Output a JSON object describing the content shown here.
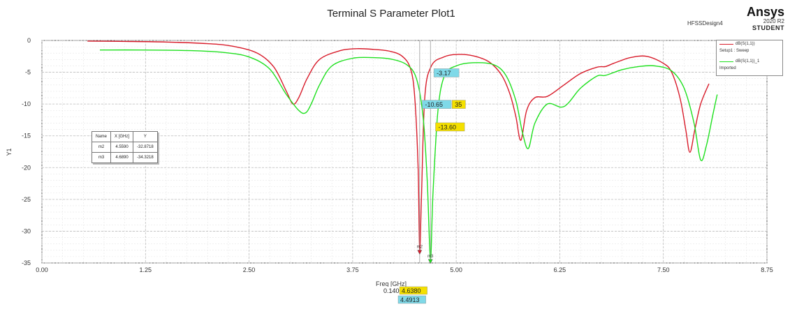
{
  "header": {
    "brand": "Ansys",
    "version": "2020 R2",
    "edition": "STUDENT",
    "design": "HFSSDesign4"
  },
  "legend": [
    {
      "name": "dB(S(1,1))",
      "sub": "Setup1 : Sweep",
      "color": "#d81b2a"
    },
    {
      "name": "dB(S(1,1))_1",
      "sub": "Imported",
      "color": "#1ee01e"
    }
  ],
  "marker_table": {
    "headers": [
      "Name",
      "X [GHz]",
      "Y"
    ],
    "rows": [
      [
        "m2",
        "4.5590",
        "-32.8718"
      ],
      [
        "m3",
        "4.6890",
        "-34.3218"
      ]
    ]
  },
  "chart_data": {
    "type": "line",
    "title": "Terminal S Parameter Plot1",
    "xlabel": "Freq [GHz]",
    "ylabel": "Y1",
    "xlim": [
      0,
      8.75
    ],
    "ylim": [
      -35,
      0
    ],
    "xticks": [
      "0.00",
      "1.25",
      "2.50",
      "3.75",
      "5.00",
      "6.25",
      "7.50",
      "8.75"
    ],
    "yticks": [
      "0",
      "-5",
      "-10",
      "-15",
      "-20",
      "-25",
      "-30",
      "-35"
    ],
    "grid": true,
    "legend_position": "top-right",
    "series": [
      {
        "name": "dB(S(1,1))",
        "color": "#d81b2a",
        "x": [
          0.55,
          1.0,
          1.5,
          2.0,
          2.3,
          2.6,
          2.8,
          2.95,
          3.03,
          3.1,
          3.2,
          3.35,
          3.6,
          3.8,
          4.0,
          4.2,
          4.35,
          4.45,
          4.5,
          4.54,
          4.559,
          4.58,
          4.62,
          4.7,
          4.85,
          5.0,
          5.2,
          5.4,
          5.55,
          5.65,
          5.72,
          5.78,
          5.85,
          5.95,
          6.1,
          6.3,
          6.5,
          6.7,
          6.8,
          6.9,
          7.1,
          7.3,
          7.5,
          7.6,
          7.7,
          7.77,
          7.82,
          7.88,
          7.95,
          8.05
        ],
        "y": [
          -0.1,
          -0.15,
          -0.25,
          -0.5,
          -0.9,
          -2.0,
          -4.2,
          -8.0,
          -10.0,
          -9.0,
          -6.0,
          -3.0,
          -1.6,
          -1.3,
          -1.4,
          -1.7,
          -2.5,
          -4.5,
          -9.0,
          -20.0,
          -32.9,
          -25.0,
          -9.0,
          -4.0,
          -2.6,
          -2.2,
          -2.4,
          -3.4,
          -5.5,
          -8.5,
          -12.0,
          -15.7,
          -11.0,
          -9.0,
          -8.8,
          -7.0,
          -5.2,
          -4.2,
          -4.1,
          -3.6,
          -2.7,
          -2.5,
          -3.6,
          -5.0,
          -9.0,
          -14.0,
          -17.6,
          -14.0,
          -10.0,
          -6.8
        ]
      },
      {
        "name": "dB(S(1,1))_1",
        "color": "#1ee01e",
        "x": [
          0.7,
          1.2,
          1.8,
          2.2,
          2.5,
          2.75,
          2.95,
          3.1,
          3.18,
          3.25,
          3.35,
          3.5,
          3.75,
          4.0,
          4.2,
          4.4,
          4.52,
          4.6,
          4.65,
          4.689,
          4.72,
          4.78,
          4.86,
          5.0,
          5.2,
          5.45,
          5.6,
          5.72,
          5.8,
          5.87,
          5.95,
          6.1,
          6.3,
          6.5,
          6.7,
          6.8,
          7.0,
          7.2,
          7.4,
          7.6,
          7.75,
          7.87,
          7.95,
          8.02,
          8.1,
          8.15
        ],
        "y": [
          -1.5,
          -1.5,
          -1.6,
          -1.9,
          -2.6,
          -4.5,
          -8.5,
          -11.0,
          -11.4,
          -10.0,
          -7.0,
          -4.0,
          -2.8,
          -2.7,
          -2.9,
          -3.8,
          -6.0,
          -12.0,
          -22.0,
          -34.3,
          -24.0,
          -11.0,
          -5.5,
          -4.0,
          -3.5,
          -3.8,
          -5.5,
          -9.5,
          -14.5,
          -17.0,
          -13.0,
          -10.0,
          -10.4,
          -7.5,
          -5.6,
          -5.5,
          -4.6,
          -4.1,
          -4.0,
          -4.8,
          -7.5,
          -13.0,
          -18.8,
          -16.5,
          -11.5,
          -8.5
        ]
      }
    ],
    "markers": [
      {
        "name": "m2",
        "x": 4.559,
        "y": -32.8718,
        "series": 0
      },
      {
        "name": "m3",
        "x": 4.689,
        "y": -34.3218,
        "series": 1
      }
    ],
    "flags": [
      {
        "text": "-3.17",
        "x": 4.73,
        "y": -5.1,
        "bg": "#7fd9e8"
      },
      {
        "text": "-10.65",
        "x": 4.59,
        "y": -10.05,
        "bg": "#7fd9e8"
      },
      {
        "text": "35",
        "x": 4.95,
        "y": -10.05,
        "bg": "#f4e000"
      },
      {
        "text": "-13.60",
        "x": 4.75,
        "y": -13.6,
        "bg": "#f4e000"
      }
    ],
    "x_readouts": [
      {
        "text": "0.1400",
        "bg": "#ffffff"
      },
      {
        "text": "4.6380",
        "bg": "#f4e000"
      },
      {
        "text": "4.4913",
        "bg": "#7fd9e8"
      }
    ]
  }
}
